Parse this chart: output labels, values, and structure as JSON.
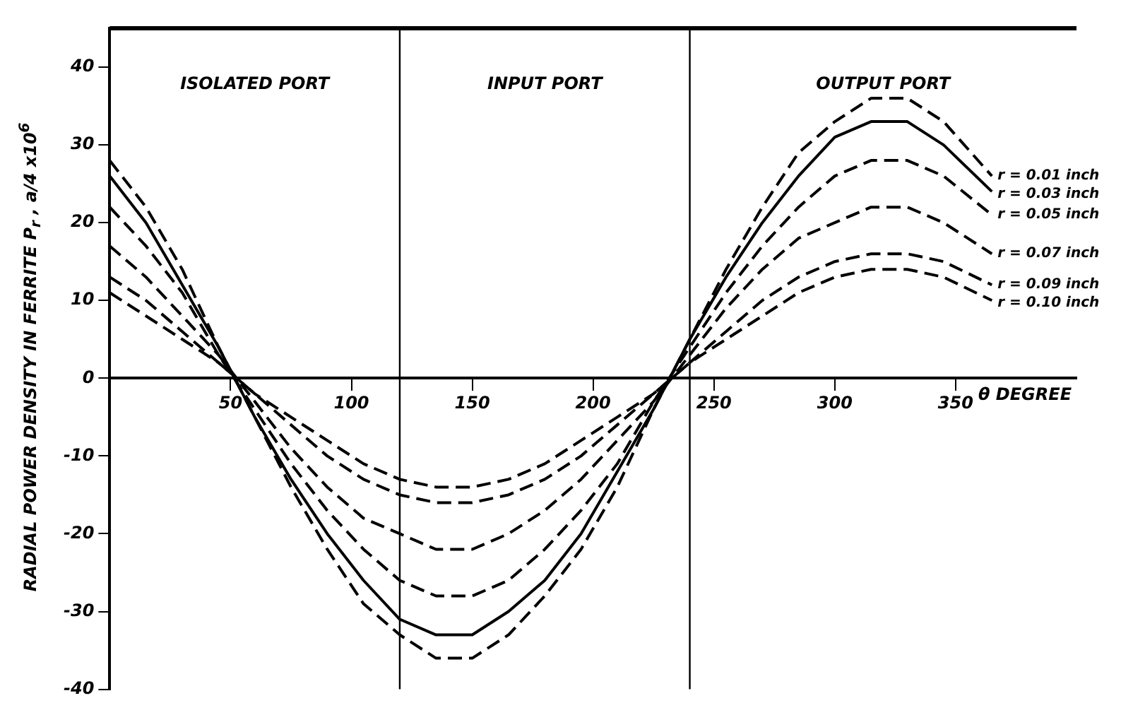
{
  "chart_data": {
    "type": "line",
    "ylabel": "RADIAL POWER DENSITY IN FERRITE P$_{r}$ , a/4 x10$^{6}$",
    "xlabel": "θ DEGREE",
    "x": [
      0,
      15,
      30,
      45,
      60,
      75,
      90,
      105,
      120,
      135,
      150,
      165,
      180,
      195,
      210,
      225,
      240,
      255,
      270,
      285,
      300,
      315,
      330,
      345,
      365
    ],
    "series": [
      {
        "name": "r = 0.01 inch",
        "color": "#000000",
        "line_style": "dashed",
        "values": [
          28,
          22,
          14,
          4,
          -5,
          -14,
          -22,
          -29,
          -33,
          -36,
          -36,
          -33,
          -28,
          -22,
          -14,
          -4,
          5,
          14,
          22,
          29,
          33,
          36,
          36,
          33,
          26
        ]
      },
      {
        "name": "r = 0.03 inch",
        "color": "#000000",
        "line_style": "solid",
        "values": [
          26,
          20,
          12,
          4,
          -5,
          -13,
          -20,
          -26,
          -31,
          -33,
          -33,
          -30,
          -26,
          -20,
          -12,
          -4,
          5,
          13,
          20,
          26,
          31,
          33,
          33,
          30,
          24
        ]
      },
      {
        "name": "r = 0.05 inch",
        "color": "#000000",
        "line_style": "dashed",
        "values": [
          22,
          17,
          11,
          3,
          -4,
          -11,
          -17,
          -22,
          -26,
          -28,
          -28,
          -26,
          -22,
          -17,
          -11,
          -3,
          4,
          11,
          17,
          22,
          26,
          28,
          28,
          26,
          21
        ]
      },
      {
        "name": "r = 0.07 inch",
        "color": "#000000",
        "line_style": "dashed",
        "values": [
          17,
          13,
          8,
          3,
          -3,
          -9,
          -14,
          -18,
          -20,
          -22,
          -22,
          -20,
          -17,
          -13,
          -8,
          -3,
          3,
          9,
          14,
          18,
          20,
          22,
          22,
          20,
          16
        ]
      },
      {
        "name": "r = 0.09 inch",
        "color": "#000000",
        "line_style": "dashed",
        "values": [
          13,
          10,
          6,
          2,
          -2,
          -6,
          -10,
          -13,
          -15,
          -16,
          -16,
          -15,
          -13,
          -10,
          -6,
          -2,
          2,
          6,
          10,
          13,
          15,
          16,
          16,
          15,
          12
        ]
      },
      {
        "name": "r = 0.10 inch",
        "color": "#000000",
        "line_style": "dashed",
        "values": [
          11,
          8,
          5,
          2,
          -2,
          -5,
          -8,
          -11,
          -13,
          -14,
          -14,
          -13,
          -11,
          -8,
          -5,
          -2,
          2,
          5,
          8,
          11,
          13,
          14,
          14,
          13,
          10
        ]
      }
    ],
    "xlim": [
      0,
      400
    ],
    "xticks": [
      50,
      100,
      150,
      200,
      250,
      300,
      350
    ],
    "ylim": [
      -40,
      45
    ],
    "yticks": [
      -40,
      -30,
      -20,
      -10,
      0,
      10,
      20,
      30,
      40
    ],
    "ref_lines": [
      {
        "axis": "x",
        "value": 120,
        "color": "#000000"
      },
      {
        "axis": "x",
        "value": 240,
        "color": "#000000"
      }
    ],
    "annotations": [
      "ISOLATED PORT",
      "INPUT PORT",
      "OUTPUT PORT"
    ],
    "legend": false,
    "marker": "none"
  }
}
